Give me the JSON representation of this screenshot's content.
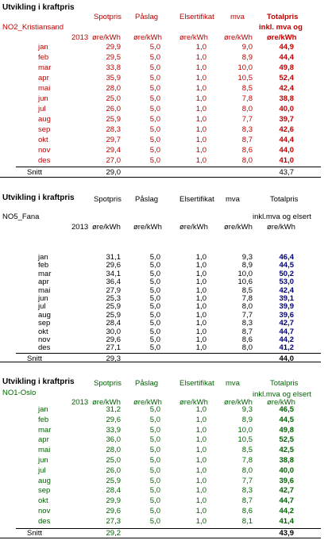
{
  "sections": [
    {
      "title": "Utvikling i kraftpris",
      "area": "NO2_Kristiansand",
      "year": "2013",
      "headers": {
        "spot": "Spotpris",
        "paslag": "Påslag",
        "elsert": "Elsertifikat",
        "mva": "mva",
        "total": "Totalpris",
        "total2": "inkl. mva og"
      },
      "units": {
        "spot": "øre/kWh",
        "paslag": "øre/kWh",
        "elsert": "øre/kWh",
        "mva": "øre/kWh",
        "total": "øre/kWh"
      },
      "rows": [
        {
          "month": "jan",
          "spot": "29,9",
          "paslag": "5,0",
          "elsert": "1,0",
          "mva": "9,0",
          "total": "44,9"
        },
        {
          "month": "feb",
          "spot": "29,5",
          "paslag": "5,0",
          "elsert": "1,0",
          "mva": "8,9",
          "total": "44,4"
        },
        {
          "month": "mar",
          "spot": "33,8",
          "paslag": "5,0",
          "elsert": "1,0",
          "mva": "10,0",
          "total": "49,8"
        },
        {
          "month": "apr",
          "spot": "35,9",
          "paslag": "5,0",
          "elsert": "1,0",
          "mva": "10,5",
          "total": "52,4"
        },
        {
          "month": "mai",
          "spot": "28,0",
          "paslag": "5,0",
          "elsert": "1,0",
          "mva": "8,5",
          "total": "42,4"
        },
        {
          "month": "jun",
          "spot": "25,0",
          "paslag": "5,0",
          "elsert": "1,0",
          "mva": "7,8",
          "total": "38,8"
        },
        {
          "month": "jul",
          "spot": "26,0",
          "paslag": "5,0",
          "elsert": "1,0",
          "mva": "8,0",
          "total": "40,0"
        },
        {
          "month": "aug",
          "spot": "25,9",
          "paslag": "5,0",
          "elsert": "1,0",
          "mva": "7,7",
          "total": "39,7"
        },
        {
          "month": "sep",
          "spot": "28,3",
          "paslag": "5,0",
          "elsert": "1,0",
          "mva": "8,3",
          "total": "42,6"
        },
        {
          "month": "okt",
          "spot": "29,7",
          "paslag": "5,0",
          "elsert": "1,0",
          "mva": "8,7",
          "total": "44,4"
        },
        {
          "month": "nov",
          "spot": "29,4",
          "paslag": "5,0",
          "elsert": "1,0",
          "mva": "8,6",
          "total": "44,0"
        },
        {
          "month": "des",
          "spot": "27,0",
          "paslag": "5,0",
          "elsert": "1,0",
          "mva": "8,0",
          "total": "41,0"
        }
      ],
      "avg": {
        "label": "Snitt",
        "spot": "29,0",
        "total": "43,7"
      },
      "colors": {
        "text": "#c00000",
        "total": "#c00000"
      }
    },
    {
      "title": "Utvikling i kraftpris",
      "area": "NO5_Fana",
      "year": "2013",
      "headers": {
        "spot": "Spotpris",
        "paslag": "Påslag",
        "elsert": "Elsertifikat",
        "mva": "mva",
        "total": "Totalpris",
        "total2": "inkl.mva og elsert"
      },
      "units": {
        "spot": "øre/kWh",
        "paslag": "øre/kWh",
        "elsert": "øre/kWh",
        "mva": "øre/kWh",
        "total": "øre/kWh"
      },
      "rows": [
        {
          "month": "jan",
          "spot": "31,1",
          "paslag": "5,0",
          "elsert": "1,0",
          "mva": "9,3",
          "total": "46,4"
        },
        {
          "month": "feb",
          "spot": "29,6",
          "paslag": "5,0",
          "elsert": "1,0",
          "mva": "8,9",
          "total": "44,5"
        },
        {
          "month": "mar",
          "spot": "34,1",
          "paslag": "5,0",
          "elsert": "1,0",
          "mva": "10,0",
          "total": "50,2"
        },
        {
          "month": "apr",
          "spot": "36,4",
          "paslag": "5,0",
          "elsert": "1,0",
          "mva": "10,6",
          "total": "53,0"
        },
        {
          "month": "mai",
          "spot": "27,9",
          "paslag": "5,0",
          "elsert": "1,0",
          "mva": "8,5",
          "total": "42,4"
        },
        {
          "month": "jun",
          "spot": "25,3",
          "paslag": "5,0",
          "elsert": "1,0",
          "mva": "7,8",
          "total": "39,1"
        },
        {
          "month": "jul",
          "spot": "25,9",
          "paslag": "5,0",
          "elsert": "1,0",
          "mva": "8,0",
          "total": "39,9"
        },
        {
          "month": "aug",
          "spot": "25,9",
          "paslag": "5,0",
          "elsert": "1,0",
          "mva": "7,7",
          "total": "39,6"
        },
        {
          "month": "sep",
          "spot": "28,4",
          "paslag": "5,0",
          "elsert": "1,0",
          "mva": "8,3",
          "total": "42,7"
        },
        {
          "month": "okt",
          "spot": "30,0",
          "paslag": "5,0",
          "elsert": "1,0",
          "mva": "8,7",
          "total": "44,7"
        },
        {
          "month": "nov",
          "spot": "29,6",
          "paslag": "5,0",
          "elsert": "1,0",
          "mva": "8,6",
          "total": "44,2"
        },
        {
          "month": "des",
          "spot": "27,1",
          "paslag": "5,0",
          "elsert": "1,0",
          "mva": "8,0",
          "total": "41,2"
        }
      ],
      "avg": {
        "label": "Snitt",
        "spot": "29,3",
        "total": "44,0"
      },
      "colors": {
        "text": "#000000",
        "total": "#00007a"
      }
    },
    {
      "title": "Utvikling i kraftpris",
      "area": "NO1-Oslo",
      "year": "2013",
      "headers": {
        "spot": "Spotpris",
        "paslag": "Påslag",
        "elsert": "Elsertifikat",
        "mva": "mva",
        "total": "Totalpris",
        "total2": "inkl.mva og elsert"
      },
      "units": {
        "spot": "øre/kWh",
        "paslag": "øre/kWh",
        "elsert": "øre/kWh",
        "mva": "øre/kWh",
        "total": "øre/kWh"
      },
      "rows": [
        {
          "month": "jan",
          "spot": "31,2",
          "paslag": "5,0",
          "elsert": "1,0",
          "mva": "9,3",
          "total": "46,5"
        },
        {
          "month": "feb",
          "spot": "29,6",
          "paslag": "5,0",
          "elsert": "1,0",
          "mva": "8,9",
          "total": "44,5"
        },
        {
          "month": "mar",
          "spot": "33,9",
          "paslag": "5,0",
          "elsert": "1,0",
          "mva": "10,0",
          "total": "49,8"
        },
        {
          "month": "apr",
          "spot": "36,0",
          "paslag": "5,0",
          "elsert": "1,0",
          "mva": "10,5",
          "total": "52,5"
        },
        {
          "month": "mai",
          "spot": "28,0",
          "paslag": "5,0",
          "elsert": "1,0",
          "mva": "8,5",
          "total": "42,5"
        },
        {
          "month": "jun",
          "spot": "25,0",
          "paslag": "5,0",
          "elsert": "1,0",
          "mva": "7,8",
          "total": "38,8"
        },
        {
          "month": "jul",
          "spot": "26,0",
          "paslag": "5,0",
          "elsert": "1,0",
          "mva": "8,0",
          "total": "40,0"
        },
        {
          "month": "aug",
          "spot": "25,9",
          "paslag": "5,0",
          "elsert": "1,0",
          "mva": "7,7",
          "total": "39,6"
        },
        {
          "month": "sep",
          "spot": "28,4",
          "paslag": "5,0",
          "elsert": "1,0",
          "mva": "8,3",
          "total": "42,7"
        },
        {
          "month": "okt",
          "spot": "29,9",
          "paslag": "5,0",
          "elsert": "1,0",
          "mva": "8,7",
          "total": "44,7"
        },
        {
          "month": "nov",
          "spot": "29,6",
          "paslag": "5,0",
          "elsert": "1,0",
          "mva": "8,6",
          "total": "44,2"
        },
        {
          "month": "des",
          "spot": "27,3",
          "paslag": "5,0",
          "elsert": "1,0",
          "mva": "8,1",
          "total": "41,4"
        }
      ],
      "avg": {
        "label": "Snitt",
        "spot": "29,2",
        "total": "43,9"
      },
      "colors": {
        "text": "#006400",
        "total": "#006400"
      }
    }
  ]
}
